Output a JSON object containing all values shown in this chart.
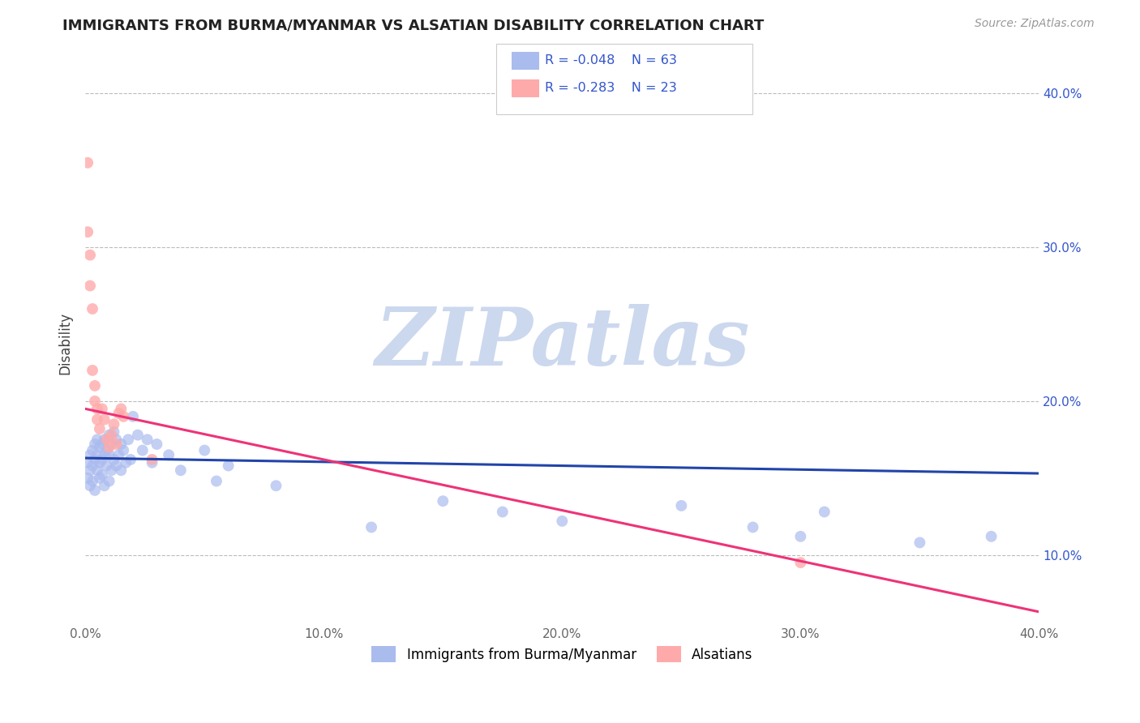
{
  "title": "IMMIGRANTS FROM BURMA/MYANMAR VS ALSATIAN DISABILITY CORRELATION CHART",
  "source_text": "Source: ZipAtlas.com",
  "ylabel": "Disability",
  "xlim": [
    0.0,
    0.4
  ],
  "ylim": [
    0.055,
    0.42
  ],
  "x_tick_labels": [
    "0.0%",
    "",
    "10.0%",
    "",
    "20.0%",
    "",
    "30.0%",
    "",
    "40.0%"
  ],
  "x_tick_values": [
    0.0,
    0.05,
    0.1,
    0.15,
    0.2,
    0.25,
    0.3,
    0.35,
    0.4
  ],
  "y_tick_values_right": [
    0.4,
    0.3,
    0.2,
    0.1
  ],
  "y_tick_labels_right": [
    "40.0%",
    "30.0%",
    "20.0%",
    "10.0%"
  ],
  "grid_color": "#bbbbbb",
  "background_color": "#ffffff",
  "watermark_text": "ZIPatlas",
  "watermark_color": "#ccd8ee",
  "legend_label_blue": "Immigrants from Burma/Myanmar",
  "legend_label_pink": "Alsatians",
  "legend_r_blue": "R = -0.048",
  "legend_n_blue": "N = 63",
  "legend_r_pink": "R = -0.283",
  "legend_n_pink": "N = 23",
  "legend_text_color": "#3355cc",
  "blue_scatter_color": "#aabbee",
  "pink_scatter_color": "#ffaaaa",
  "blue_line_color": "#2244aa",
  "pink_line_color": "#ee3377",
  "blue_scatter_x": [
    0.001,
    0.001,
    0.002,
    0.002,
    0.002,
    0.003,
    0.003,
    0.003,
    0.004,
    0.004,
    0.004,
    0.005,
    0.005,
    0.005,
    0.006,
    0.006,
    0.006,
    0.007,
    0.007,
    0.007,
    0.008,
    0.008,
    0.008,
    0.009,
    0.009,
    0.01,
    0.01,
    0.01,
    0.011,
    0.011,
    0.012,
    0.012,
    0.013,
    0.013,
    0.014,
    0.015,
    0.015,
    0.016,
    0.017,
    0.018,
    0.019,
    0.02,
    0.022,
    0.024,
    0.026,
    0.028,
    0.03,
    0.035,
    0.04,
    0.05,
    0.055,
    0.06,
    0.08,
    0.12,
    0.15,
    0.175,
    0.2,
    0.25,
    0.28,
    0.3,
    0.31,
    0.35,
    0.38
  ],
  "blue_scatter_y": [
    0.16,
    0.15,
    0.165,
    0.155,
    0.145,
    0.168,
    0.158,
    0.148,
    0.172,
    0.162,
    0.142,
    0.175,
    0.165,
    0.155,
    0.17,
    0.16,
    0.15,
    0.172,
    0.162,
    0.152,
    0.175,
    0.165,
    0.145,
    0.168,
    0.158,
    0.178,
    0.165,
    0.148,
    0.172,
    0.155,
    0.18,
    0.162,
    0.175,
    0.158,
    0.165,
    0.172,
    0.155,
    0.168,
    0.16,
    0.175,
    0.162,
    0.19,
    0.178,
    0.168,
    0.175,
    0.16,
    0.172,
    0.165,
    0.155,
    0.168,
    0.148,
    0.158,
    0.145,
    0.118,
    0.135,
    0.128,
    0.122,
    0.132,
    0.118,
    0.112,
    0.128,
    0.108,
    0.112
  ],
  "pink_scatter_x": [
    0.001,
    0.001,
    0.002,
    0.002,
    0.003,
    0.003,
    0.004,
    0.004,
    0.005,
    0.005,
    0.006,
    0.007,
    0.008,
    0.009,
    0.01,
    0.011,
    0.012,
    0.013,
    0.014,
    0.015,
    0.016,
    0.3,
    0.028
  ],
  "pink_scatter_y": [
    0.355,
    0.31,
    0.295,
    0.275,
    0.26,
    0.22,
    0.21,
    0.2,
    0.195,
    0.188,
    0.182,
    0.195,
    0.188,
    0.175,
    0.17,
    0.178,
    0.185,
    0.172,
    0.192,
    0.195,
    0.19,
    0.095,
    0.162
  ],
  "blue_line_x": [
    0.0,
    0.4
  ],
  "blue_line_y": [
    0.163,
    0.153
  ],
  "pink_line_x": [
    0.0,
    0.4
  ],
  "pink_line_y": [
    0.195,
    0.063
  ]
}
